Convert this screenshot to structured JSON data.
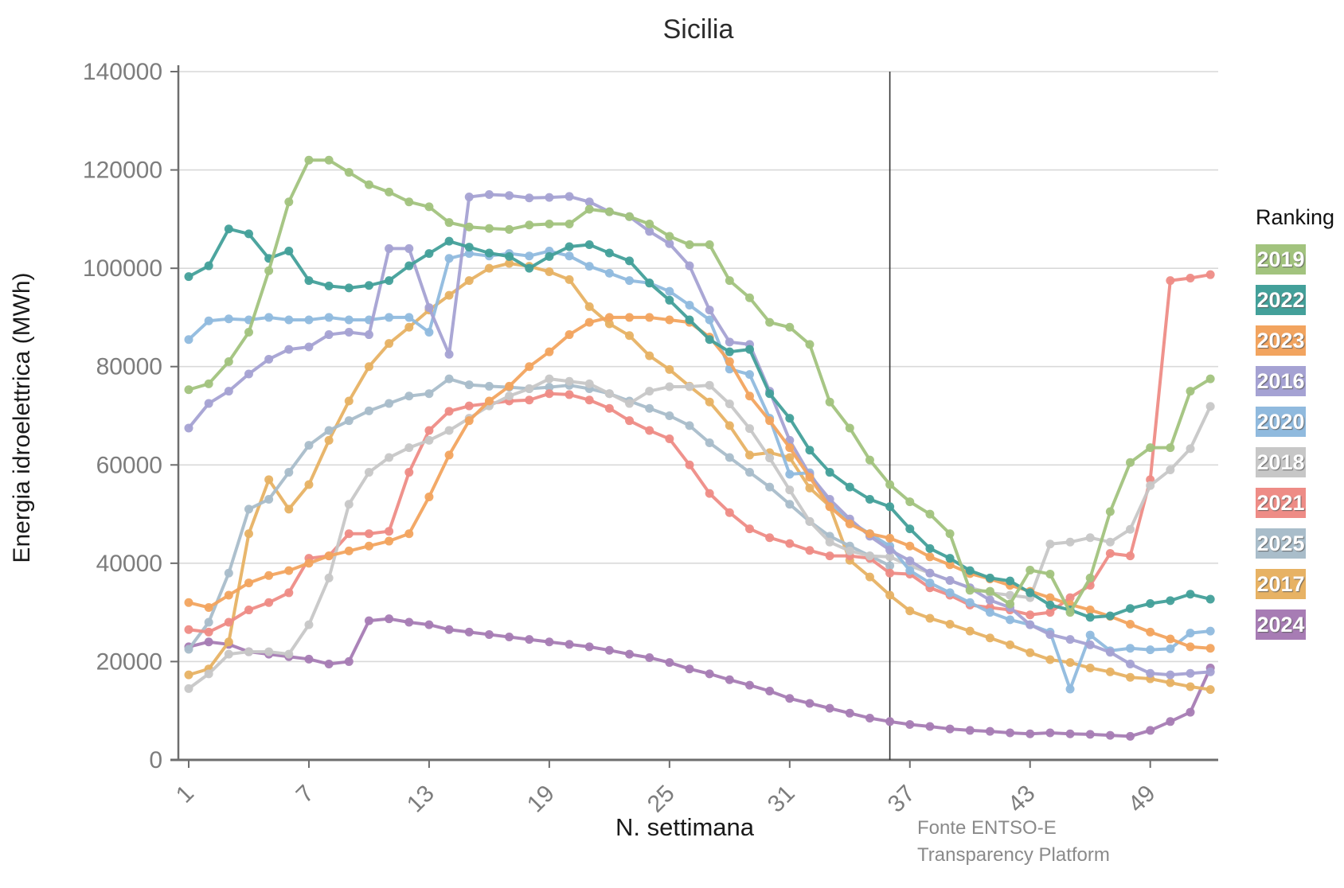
{
  "title": "Sicilia",
  "y_axis_label": "Energia idroelettrica (MWh)",
  "x_axis_label": "N. settimana",
  "source_line1": "Fonte ENTSO-E",
  "source_line2": "Transparency Platform",
  "legend_title": "Ranking",
  "colors": {
    "grid": "#d9d9d9",
    "axis": "#6e6e6e",
    "tick_text": "#7d7d7d",
    "marker_line": "#333333",
    "title_text": "#2b2b2b",
    "source_text": "#8a8a8a"
  },
  "chart_data": {
    "type": "line",
    "xlabel": "N. settimana",
    "ylabel": "Energia idroelettrica (MWh)",
    "ylim": [
      0,
      140000
    ],
    "xlim": [
      1,
      52
    ],
    "grid": "horizontal",
    "legend_position": "right",
    "y_ticks": [
      0,
      20000,
      40000,
      60000,
      80000,
      100000,
      120000,
      140000
    ],
    "x_ticks": [
      1,
      7,
      13,
      19,
      25,
      31,
      37,
      43,
      49
    ],
    "current_week_marker": 36,
    "x": [
      1,
      2,
      3,
      4,
      5,
      6,
      7,
      8,
      9,
      10,
      11,
      12,
      13,
      14,
      15,
      16,
      17,
      18,
      19,
      20,
      21,
      22,
      23,
      24,
      25,
      26,
      27,
      28,
      29,
      30,
      31,
      32,
      33,
      34,
      35,
      36,
      37,
      38,
      39,
      40,
      41,
      42,
      43,
      44,
      45,
      46,
      47,
      48,
      49,
      50,
      51,
      52
    ],
    "series": [
      {
        "name": "2019",
        "color": "#a2c37e",
        "values": [
          75300,
          76500,
          81000,
          87000,
          99500,
          113500,
          122000,
          122000,
          119500,
          117000,
          115500,
          113500,
          112500,
          109300,
          108400,
          108100,
          107900,
          108800,
          109000,
          109000,
          112000,
          111500,
          110500,
          109000,
          106500,
          104800,
          104800,
          97500,
          94000,
          89000,
          88000,
          84500,
          72800,
          67500,
          61000,
          56000,
          52500,
          50000,
          46000,
          34500,
          34300,
          31700,
          38600,
          37800,
          30000,
          37000,
          50500,
          60500,
          63500,
          63500,
          75000,
          77500
        ]
      },
      {
        "name": "2022",
        "color": "#43a09a",
        "values": [
          98300,
          100500,
          108000,
          107000,
          102000,
          103500,
          97500,
          96400,
          96000,
          96500,
          97500,
          100500,
          103000,
          105500,
          104300,
          103100,
          102400,
          100000,
          102400,
          104400,
          104800,
          103100,
          101500,
          97000,
          93500,
          89500,
          85500,
          83000,
          83500,
          74500,
          69500,
          63000,
          58500,
          55500,
          53000,
          51500,
          47000,
          43000,
          41000,
          38500,
          37000,
          36400,
          34000,
          31500,
          30500,
          29000,
          29300,
          30800,
          31800,
          32400,
          33700,
          32700
        ]
      },
      {
        "name": "2023",
        "color": "#f2a45f",
        "values": [
          32000,
          31000,
          33500,
          36000,
          37500,
          38500,
          40000,
          41500,
          42500,
          43500,
          44500,
          46000,
          53500,
          62000,
          69000,
          73000,
          76000,
          80000,
          83000,
          86500,
          89000,
          90000,
          90000,
          90000,
          89500,
          89000,
          86000,
          81000,
          74000,
          69000,
          63500,
          57500,
          51500,
          48000,
          46000,
          45100,
          43500,
          41300,
          39700,
          37900,
          36800,
          35500,
          34300,
          33000,
          31600,
          30500,
          29200,
          27600,
          26000,
          24600,
          23000,
          22700
        ]
      },
      {
        "name": "2016",
        "color": "#a5a2d3",
        "values": [
          67500,
          72500,
          75000,
          78500,
          81500,
          83500,
          84000,
          86500,
          87000,
          86500,
          104000,
          104000,
          92000,
          82500,
          114500,
          115000,
          114800,
          114300,
          114400,
          114600,
          113500,
          111500,
          110500,
          107500,
          105000,
          100500,
          91500,
          85000,
          84500,
          75000,
          65000,
          58000,
          53000,
          49000,
          45500,
          42700,
          40500,
          38000,
          36500,
          35000,
          32500,
          31000,
          27500,
          25500,
          24500,
          23400,
          21900,
          19500,
          17600,
          17300,
          17600,
          17900
        ]
      },
      {
        "name": "2020",
        "color": "#90bade",
        "values": [
          85500,
          89300,
          89700,
          89500,
          90000,
          89500,
          89500,
          90000,
          89500,
          89500,
          90000,
          90000,
          87000,
          102000,
          103000,
          102500,
          103000,
          102500,
          103500,
          102500,
          100400,
          99000,
          97500,
          97000,
          95300,
          92500,
          89500,
          79500,
          78400,
          69500,
          58100,
          58400,
          52000,
          48500,
          46000,
          43500,
          38500,
          36000,
          34000,
          32000,
          30000,
          28500,
          27500,
          26000,
          14400,
          25400,
          22200,
          22700,
          22400,
          22600,
          25800,
          26200
        ]
      },
      {
        "name": "2018",
        "color": "#c7c7c7",
        "values": [
          14500,
          17500,
          21500,
          22000,
          22000,
          21500,
          27500,
          37000,
          52000,
          58500,
          61500,
          63500,
          65000,
          67000,
          69500,
          72000,
          74000,
          75500,
          77500,
          77000,
          76500,
          74500,
          72500,
          75000,
          75900,
          75900,
          76200,
          72400,
          67400,
          61400,
          54900,
          48500,
          44300,
          42500,
          41500,
          41300,
          39500,
          38000,
          36500,
          35000,
          34000,
          33500,
          33000,
          43900,
          44300,
          45200,
          44300,
          46900,
          55800,
          59000,
          63300,
          71900
        ]
      },
      {
        "name": "2021",
        "color": "#ee8c86",
        "values": [
          26500,
          26000,
          28000,
          30500,
          32000,
          34000,
          41000,
          41500,
          46000,
          46000,
          46500,
          58500,
          67000,
          70900,
          72000,
          72500,
          73000,
          73200,
          74500,
          74300,
          73200,
          71500,
          69000,
          67000,
          65300,
          60000,
          54200,
          50300,
          47000,
          45200,
          44000,
          42600,
          41500,
          41500,
          41000,
          38000,
          37800,
          35000,
          33500,
          31500,
          31000,
          30500,
          29500,
          30000,
          33000,
          35500,
          42000,
          41500,
          57000,
          97500,
          98000,
          98700
        ]
      },
      {
        "name": "2025",
        "color": "#a9bdca",
        "values": [
          22500,
          28000,
          38000,
          51000,
          53000,
          58500,
          64000,
          67000,
          69000,
          71000,
          72500,
          74000,
          74500,
          77500,
          76300,
          76000,
          75800,
          75500,
          75800,
          76200,
          75500,
          74500,
          73000,
          71500,
          70000,
          68000,
          64500,
          61500,
          58500,
          55500,
          52000,
          48500,
          45500,
          43500,
          41500,
          39500,
          null,
          null,
          null,
          null,
          null,
          null,
          null,
          null,
          null,
          null,
          null,
          null,
          null,
          null,
          null,
          null
        ]
      },
      {
        "name": "2017",
        "color": "#e7b264",
        "values": [
          17300,
          18500,
          24000,
          46000,
          57000,
          51000,
          56000,
          65000,
          73000,
          80000,
          84700,
          88000,
          91500,
          94500,
          97500,
          100000,
          101000,
          100400,
          99300,
          97700,
          92200,
          88700,
          86300,
          82200,
          79400,
          76000,
          72800,
          68000,
          62000,
          62500,
          61500,
          55300,
          51600,
          40600,
          37200,
          33500,
          30300,
          28800,
          27600,
          26200,
          24800,
          23400,
          21800,
          20400,
          19800,
          18700,
          17900,
          16800,
          16500,
          15700,
          14900,
          14300
        ]
      },
      {
        "name": "2024",
        "color": "#a77cb4",
        "values": [
          23000,
          24000,
          23500,
          22000,
          21500,
          21000,
          20500,
          19500,
          20000,
          28300,
          28700,
          28000,
          27500,
          26500,
          26000,
          25500,
          25000,
          24500,
          24000,
          23500,
          23000,
          22300,
          21500,
          20800,
          19800,
          18500,
          17500,
          16300,
          15200,
          14000,
          12500,
          11500,
          10500,
          9500,
          8500,
          7800,
          7200,
          6800,
          6300,
          6000,
          5800,
          5500,
          5300,
          5500,
          5300,
          5200,
          5000,
          4800,
          6000,
          7800,
          9700,
          18700
        ]
      }
    ]
  }
}
